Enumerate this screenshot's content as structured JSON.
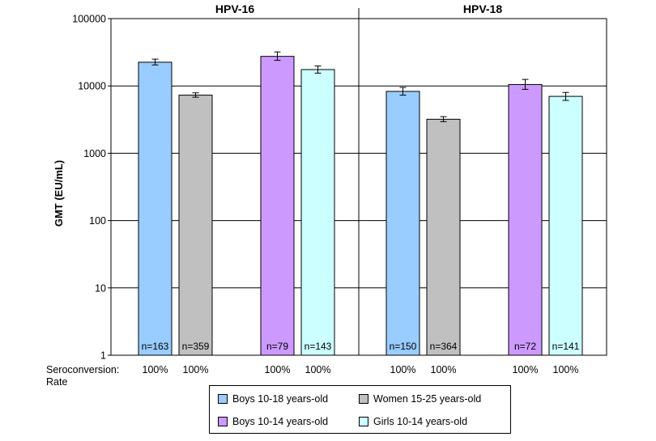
{
  "chart_data": {
    "type": "bar",
    "ylabel": "GMT (EU/mL)",
    "yscale": "log",
    "ylim": [
      1,
      100000
    ],
    "yticks": [
      "1",
      "10",
      "100",
      "1000",
      "10000",
      "100000"
    ],
    "grid": true,
    "legend_placement": "bottom",
    "panels": [
      {
        "title": "HPV-16"
      },
      {
        "title": "HPV-18"
      }
    ],
    "row_label_line1": "Seroconversion:",
    "row_label_line2": "Rate",
    "series": [
      {
        "name": "Boys 10-18 years-old",
        "color": "#99CCFF"
      },
      {
        "name": "Women 15-25 years-old",
        "color": "#C0C0C0"
      },
      {
        "name": "Boys 10-14 years-old",
        "color": "#CC99FF"
      },
      {
        "name": "Girls 10-14 years-old",
        "color": "#CCFFFF"
      }
    ],
    "bars": [
      {
        "panel": 0,
        "series": 0,
        "value": 22500,
        "err_low": 20500,
        "err_high": 25000,
        "n_label": "n=163",
        "rate": "100%"
      },
      {
        "panel": 0,
        "series": 1,
        "value": 7300,
        "err_low": 6800,
        "err_high": 7900,
        "n_label": "n=359",
        "rate": "100%"
      },
      {
        "panel": 0,
        "series": 2,
        "value": 27500,
        "err_low": 24000,
        "err_high": 32000,
        "n_label": "n=79",
        "rate": "100%"
      },
      {
        "panel": 0,
        "series": 3,
        "value": 17500,
        "err_low": 15500,
        "err_high": 19800,
        "n_label": "n=143",
        "rate": "100%"
      },
      {
        "panel": 1,
        "series": 0,
        "value": 8300,
        "err_low": 7300,
        "err_high": 9500,
        "n_label": "n=150",
        "rate": "100%"
      },
      {
        "panel": 1,
        "series": 1,
        "value": 3200,
        "err_low": 2950,
        "err_high": 3500,
        "n_label": "n=364",
        "rate": "100%"
      },
      {
        "panel": 1,
        "series": 2,
        "value": 10500,
        "err_low": 8900,
        "err_high": 12500,
        "n_label": "n=72",
        "rate": "100%"
      },
      {
        "panel": 1,
        "series": 3,
        "value": 7000,
        "err_low": 6100,
        "err_high": 8000,
        "n_label": "n=141",
        "rate": "100%"
      }
    ]
  }
}
